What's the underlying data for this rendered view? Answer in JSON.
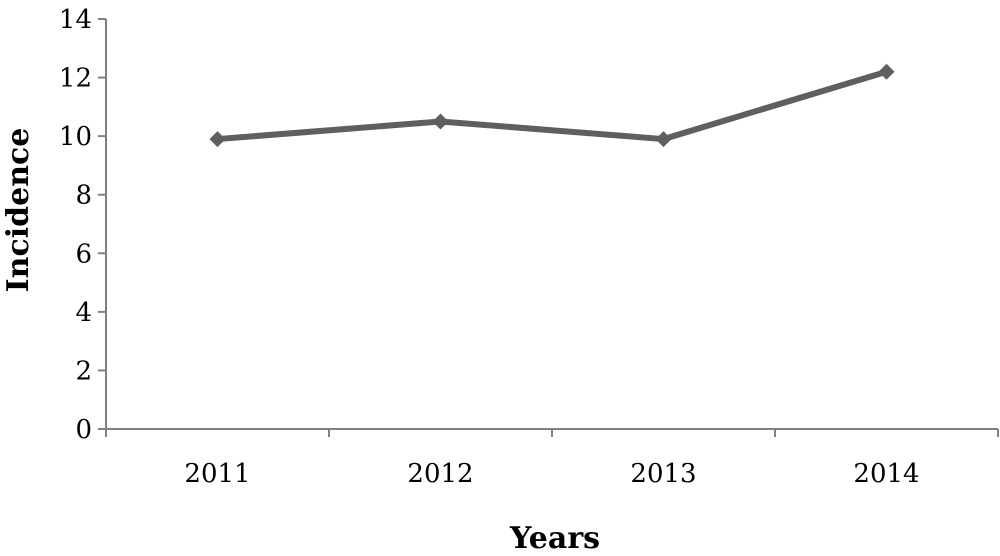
{
  "chart_data": {
    "type": "line",
    "categories": [
      "2011",
      "2012",
      "2013",
      "2014"
    ],
    "series": [
      {
        "values": [
          9.9,
          10.5,
          9.9,
          12.2
        ]
      }
    ],
    "xlabel": "Years",
    "ylabel": "Incidence",
    "ylim": [
      0,
      14
    ],
    "yticks": [
      "0",
      "2",
      "4",
      "6",
      "8",
      "10",
      "12",
      "14"
    ],
    "grid": false,
    "legend": "none",
    "marker": "diamond",
    "colors": {
      "series": "#5f5f5f",
      "axis": "#808080"
    }
  }
}
